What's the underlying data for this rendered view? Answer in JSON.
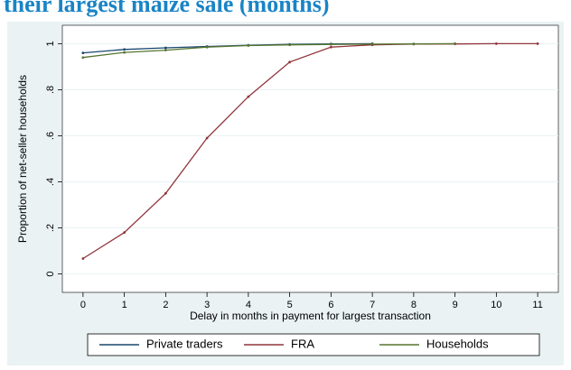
{
  "header": {
    "title": "their largest maize sale (months)"
  },
  "chart_data": {
    "type": "line",
    "title": "",
    "xlabel": "Delay in months in payment for largest transaction",
    "ylabel": "Proportion of net-seller households",
    "x_ticks": [
      0,
      1,
      2,
      3,
      4,
      5,
      6,
      7,
      8,
      9,
      10,
      11
    ],
    "y_ticks": [
      0,
      0.2,
      0.4,
      0.6,
      0.8,
      1
    ],
    "y_tick_labels": [
      "0",
      ".2",
      ".4",
      ".6",
      ".8",
      "1"
    ],
    "xlim": [
      -0.5,
      11.5
    ],
    "ylim": [
      -0.08,
      1.08
    ],
    "grid": true,
    "legend_position": "bottom",
    "series": [
      {
        "name": "Private traders",
        "color": "#1a476f",
        "x": [
          0,
          1,
          2,
          3,
          4,
          5,
          6,
          7
        ],
        "y": [
          0.96,
          0.975,
          0.982,
          0.988,
          0.993,
          0.997,
          0.999,
          1.0
        ]
      },
      {
        "name": "FRA",
        "color": "#90353b",
        "x": [
          0,
          1,
          2,
          3,
          4,
          5,
          6,
          7,
          8,
          9,
          10,
          11
        ],
        "y": [
          0.067,
          0.18,
          0.35,
          0.59,
          0.77,
          0.92,
          0.985,
          0.995,
          0.998,
          0.999,
          1.0,
          1.0
        ]
      },
      {
        "name": "Households",
        "color": "#55752f",
        "x": [
          0,
          1,
          2,
          3,
          4,
          5,
          6,
          7,
          8,
          9
        ],
        "y": [
          0.94,
          0.962,
          0.972,
          0.985,
          0.992,
          0.995,
          0.997,
          0.998,
          0.999,
          1.0
        ]
      }
    ]
  }
}
